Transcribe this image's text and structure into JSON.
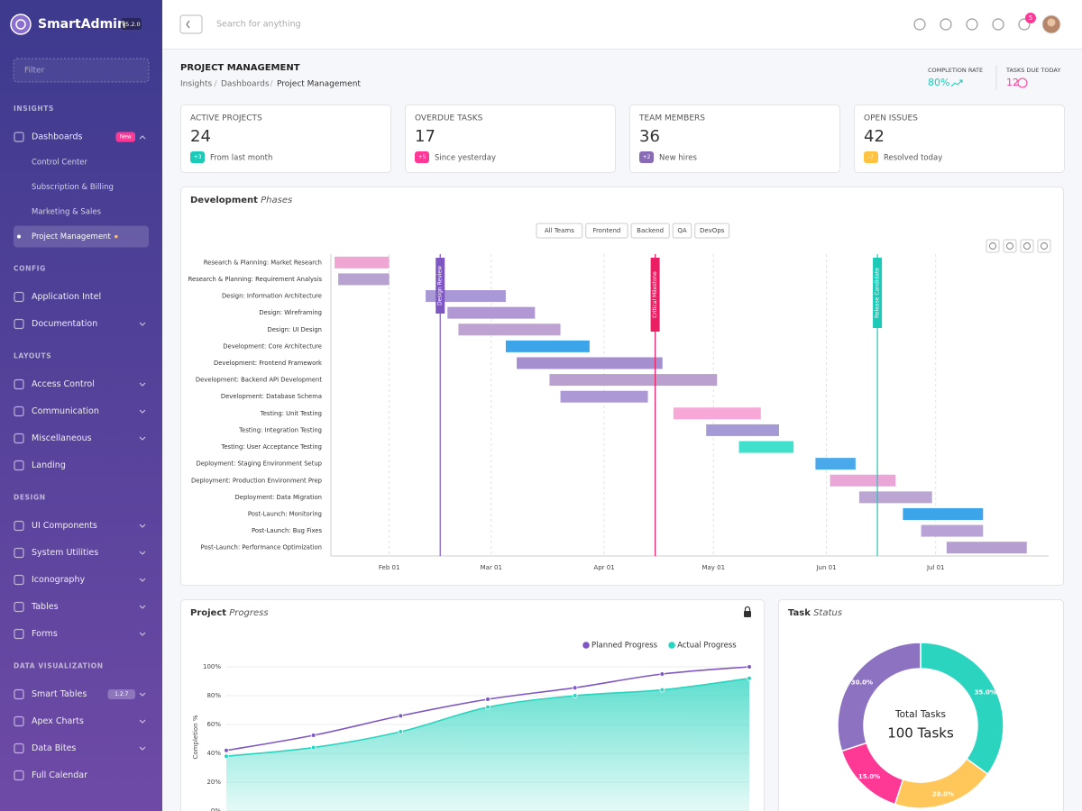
{
  "sidebar": {
    "brand": "SmartAdmin",
    "version": "v5.2.0",
    "filter_placeholder": "Filter",
    "sections": [
      {
        "title": "INSIGHTS",
        "items": [
          {
            "label": "Dashboards",
            "badge": "New",
            "submenu": true,
            "children": [
              {
                "label": "Control Center"
              },
              {
                "label": "Subscription & Billing"
              },
              {
                "label": "Marketing & Sales"
              },
              {
                "label": "Project Management",
                "active": true
              }
            ]
          }
        ]
      },
      {
        "title": "CONFIG",
        "items": [
          {
            "label": "Application Intel"
          },
          {
            "label": "Documentation",
            "submenu": true
          }
        ]
      },
      {
        "title": "LAYOUTS",
        "items": [
          {
            "label": "Access Control",
            "submenu": true
          },
          {
            "label": "Communication",
            "submenu": true
          },
          {
            "label": "Miscellaneous",
            "submenu": true
          },
          {
            "label": "Landing"
          }
        ]
      },
      {
        "title": "DESIGN",
        "items": [
          {
            "label": "UI Components",
            "submenu": true
          },
          {
            "label": "System Utilities",
            "submenu": true
          },
          {
            "label": "Iconography",
            "submenu": true
          },
          {
            "label": "Tables",
            "submenu": true
          },
          {
            "label": "Forms",
            "submenu": true
          }
        ]
      },
      {
        "title": "DATA VISUALIZATION",
        "items": [
          {
            "label": "Smart Tables",
            "badge": "1.2.7",
            "submenu": true
          },
          {
            "label": "Apex Charts",
            "submenu": true
          },
          {
            "label": "Data Bites",
            "submenu": true
          },
          {
            "label": "Full Calendar"
          }
        ]
      }
    ]
  },
  "topbar": {
    "search_placeholder": "Search for anything",
    "notification_count": 5
  },
  "header": {
    "title": "PROJECT MANAGEMENT",
    "breadcrumb": [
      "Insights",
      "Dashboards",
      "Project Management"
    ],
    "completion_rate": {
      "label": "COMPLETION RATE",
      "value": "80%"
    },
    "tasks_due": {
      "label": "TASKS DUE TODAY",
      "value": 12
    }
  },
  "stats": [
    {
      "title": "ACTIVE PROJECTS",
      "value": 24,
      "badge": "+3",
      "note": "From last month",
      "color": "#1dc9b7"
    },
    {
      "title": "OVERDUE TASKS",
      "value": 17,
      "badge": "+5",
      "note": "Since yesterday",
      "color": "#fd3995"
    },
    {
      "title": "TEAM MEMBERS",
      "value": 36,
      "badge": "+2",
      "note": "New hires",
      "color": "#886ab5"
    },
    {
      "title": "OPEN ISSUES",
      "value": 42,
      "badge": "-7",
      "note": "Resolved today",
      "color": "#ffc241"
    }
  ],
  "gantt": {
    "type": "rangeBar",
    "title": "Development",
    "title_em": "Phases",
    "filters": [
      "All Teams",
      "Frontend",
      "Backend",
      "QA",
      "DevOps"
    ],
    "xlim": [
      15,
      212
    ],
    "xticks": [
      {
        "value": 31,
        "label": "Feb 01"
      },
      {
        "value": 59,
        "label": "Mar 01"
      },
      {
        "value": 90,
        "label": "Apr 01"
      },
      {
        "value": 120,
        "label": "May 01"
      },
      {
        "value": 151,
        "label": "Jun 01"
      },
      {
        "value": 181,
        "label": "Jul 01"
      }
    ],
    "grid": true,
    "tasks": [
      {
        "name": "Research & Planning: Market Research",
        "start": 16,
        "end": 31,
        "color": "#f0a6d3"
      },
      {
        "name": "Research & Planning: Requirement Analysis",
        "start": 17,
        "end": 31,
        "color": "#b8a2cf"
      },
      {
        "name": "Design: Information Architecture",
        "start": 41,
        "end": 63,
        "color": "#a998d6"
      },
      {
        "name": "Design: Wireframing",
        "start": 47,
        "end": 71,
        "color": "#b197d4"
      },
      {
        "name": "Design: UI Design",
        "start": 50,
        "end": 78,
        "color": "#bda2d2"
      },
      {
        "name": "Development: Core Architecture",
        "start": 63,
        "end": 86,
        "color": "#3ca5ea"
      },
      {
        "name": "Development: Frontend Framework",
        "start": 66,
        "end": 106,
        "color": "#a58fcf"
      },
      {
        "name": "Development: Backend API Development",
        "start": 75,
        "end": 121,
        "color": "#b9a0cf"
      },
      {
        "name": "Development: Database Schema",
        "start": 78,
        "end": 102,
        "color": "#ab98d4"
      },
      {
        "name": "Testing: Unit Testing",
        "start": 109,
        "end": 133,
        "color": "#f7a8d6"
      },
      {
        "name": "Testing: Integration Testing",
        "start": 118,
        "end": 138,
        "color": "#a59ad6"
      },
      {
        "name": "Testing: User Acceptance Testing",
        "start": 127,
        "end": 142,
        "color": "#40e0cd"
      },
      {
        "name": "Deployment: Staging Environment Setup",
        "start": 148,
        "end": 159,
        "color": "#4aa9eb"
      },
      {
        "name": "Deployment: Production Environment Prep",
        "start": 152,
        "end": 170,
        "color": "#eaa6d6"
      },
      {
        "name": "Deployment: Data Migration",
        "start": 160,
        "end": 180,
        "color": "#bba5d3"
      },
      {
        "name": "Post-Launch: Monitoring",
        "start": 172,
        "end": 194,
        "color": "#3ca5ea"
      },
      {
        "name": "Post-Launch: Bug Fixes",
        "start": 177,
        "end": 194,
        "color": "#b8a2d6"
      },
      {
        "name": "Post-Launch: Performance Optimization",
        "start": 184,
        "end": 206,
        "color": "#b59fd1"
      }
    ],
    "milestones": [
      {
        "label": "Design Review",
        "x": 45,
        "color": "#7e57c2"
      },
      {
        "label": "Critical Milestone",
        "x": 104,
        "color": "#e91e63"
      },
      {
        "label": "Release Candidate",
        "x": 165,
        "color": "#1dc9b7"
      }
    ]
  },
  "progress": {
    "type": "area",
    "title": "Project",
    "title_em": "Progress",
    "categories": [
      null,
      null,
      null,
      null,
      null,
      null,
      null
    ],
    "series": [
      {
        "name": "Planned Progress",
        "color": "#7e57c2",
        "values": [
          42,
          52.5,
          66,
          77.5,
          85.5,
          95,
          100
        ]
      },
      {
        "name": "Actual Progress",
        "color": "#2ad4bf",
        "values": [
          38,
          44,
          55,
          72,
          80,
          84,
          92
        ]
      }
    ],
    "ylim": [
      0,
      100
    ],
    "yticks": [
      {
        "value": 0,
        "label": "0%"
      },
      {
        "value": 20,
        "label": "20%"
      },
      {
        "value": 40,
        "label": "40%"
      },
      {
        "value": 60,
        "label": "60%"
      },
      {
        "value": 80,
        "label": "80%"
      },
      {
        "value": 100,
        "label": "100%"
      }
    ],
    "ylabel": "Completion %",
    "grid": true
  },
  "task_status": {
    "type": "donut",
    "title": "Task",
    "title_em": "Status",
    "values": [
      35,
      20,
      15,
      30
    ],
    "value_labels": [
      "35.0%",
      "20.0%",
      "15.0%",
      "30.0%"
    ],
    "colors": [
      "#2ad4bf",
      "#ffc75a",
      "#fd3995",
      "#8e72c2"
    ],
    "center_title": "Total Tasks",
    "center_value": "100 Tasks"
  }
}
